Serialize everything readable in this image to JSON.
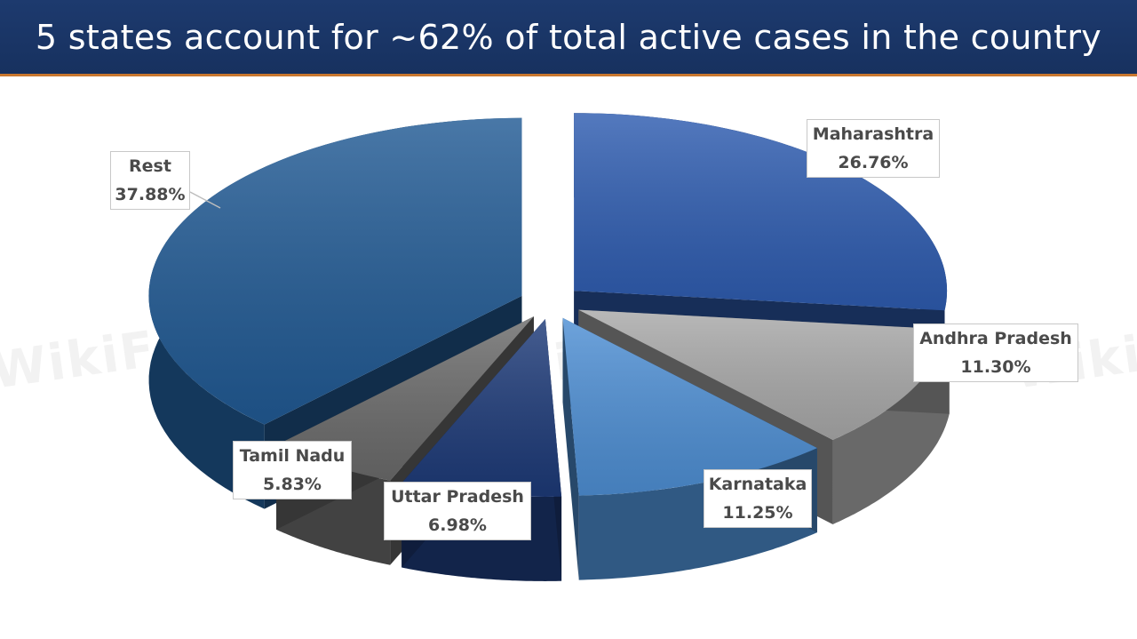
{
  "header": {
    "title": "5 states account for ~62% of total active cases in the country"
  },
  "watermark": {
    "text": "WikiFX"
  },
  "chart_data": {
    "type": "pie",
    "title": "5 states account for ~62% of total active cases in the country",
    "legend": "none",
    "slices": [
      {
        "label": "Maharashtra",
        "value": 26.76,
        "value_label": "26.76%",
        "color": "#2e5cb0"
      },
      {
        "label": "Andhra Pradesh",
        "value": 11.3,
        "value_label": "11.30%",
        "color": "#a9a9a9"
      },
      {
        "label": "Karnataka",
        "value": 11.25,
        "value_label": "11.25%",
        "color": "#4e8fd4"
      },
      {
        "label": "Uttar Pradesh",
        "value": 6.98,
        "value_label": "6.98%",
        "color": "#1d3a78"
      },
      {
        "label": "Tamil Nadu",
        "value": 5.83,
        "value_label": "5.83%",
        "color": "#6b6b6b"
      },
      {
        "label": "Rest",
        "value": 37.88,
        "value_label": "37.88%",
        "color": "#215a94"
      }
    ]
  }
}
